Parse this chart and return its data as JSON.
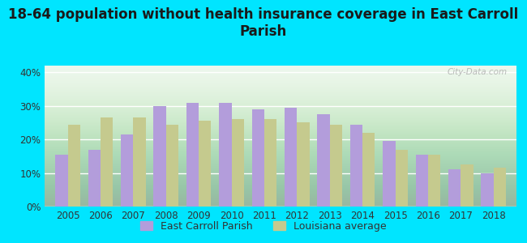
{
  "title": "18-64 population without health insurance coverage in East Carroll\nParish",
  "years": [
    2005,
    2006,
    2007,
    2008,
    2009,
    2010,
    2011,
    2012,
    2013,
    2014,
    2015,
    2016,
    2017,
    2018
  ],
  "parish_values": [
    15.5,
    17.0,
    21.5,
    30.0,
    31.0,
    31.0,
    29.0,
    29.5,
    27.5,
    24.5,
    19.5,
    15.5,
    11.0,
    10.0
  ],
  "state_values": [
    24.5,
    26.5,
    26.5,
    24.5,
    25.5,
    26.0,
    26.0,
    25.0,
    24.5,
    22.0,
    17.0,
    15.5,
    12.5,
    11.5
  ],
  "parish_color": "#b39ddb",
  "state_color": "#c5ca8e",
  "background_outer": "#00e5ff",
  "ylim": [
    0,
    42
  ],
  "yticks": [
    0,
    10,
    20,
    30,
    40
  ],
  "ytick_labels": [
    "0%",
    "10%",
    "20%",
    "30%",
    "40%"
  ],
  "legend_parish": "East Carroll Parish",
  "legend_state": "Louisiana average",
  "bar_width": 0.38,
  "title_fontsize": 12,
  "tick_fontsize": 8.5,
  "legend_fontsize": 9,
  "watermark": "City-Data.com"
}
